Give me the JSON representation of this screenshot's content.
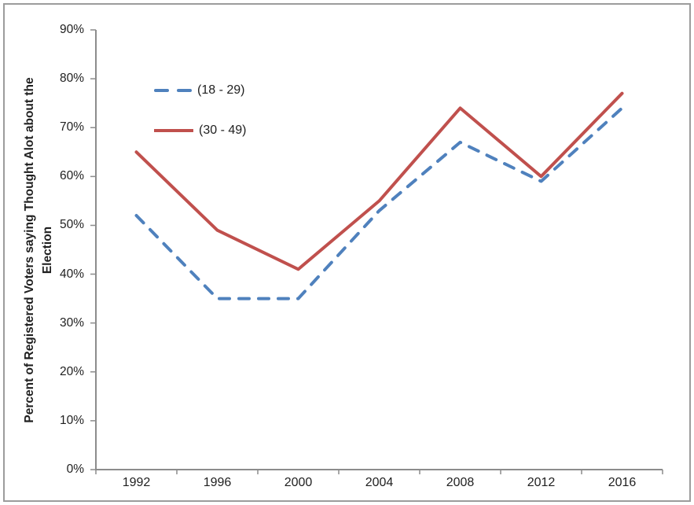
{
  "chart_data": {
    "type": "line",
    "categories": [
      "1992",
      "1996",
      "2000",
      "2004",
      "2008",
      "2012",
      "2016"
    ],
    "series": [
      {
        "name": "(18 - 29)",
        "values": [
          52,
          35,
          35,
          53,
          67,
          59,
          74
        ],
        "color": "#4F81BD",
        "style": "dashed"
      },
      {
        "name": "(30 - 49)",
        "values": [
          65,
          49,
          41,
          55,
          74,
          60,
          77
        ],
        "color": "#C0504D",
        "style": "solid"
      }
    ],
    "xlabel": "",
    "ylabel": "Percent of Registered Voters saying Thought Alot about the Election",
    "ylabel_lines": [
      "Percent of Registered Voters saying Thought Alot about the",
      "Election"
    ],
    "ylim": [
      0,
      90
    ],
    "y_tick_step": 10,
    "y_tick_labels": [
      "0%",
      "10%",
      "20%",
      "30%",
      "40%",
      "50%",
      "60%",
      "70%",
      "80%",
      "90%"
    ],
    "grid": "off",
    "legend_position": "inside-upper-left"
  },
  "colors": {
    "axis": "#8c8c8c",
    "text": "#1f1f1f",
    "frame_border": "#9c9c9c",
    "background": "#ffffff"
  }
}
